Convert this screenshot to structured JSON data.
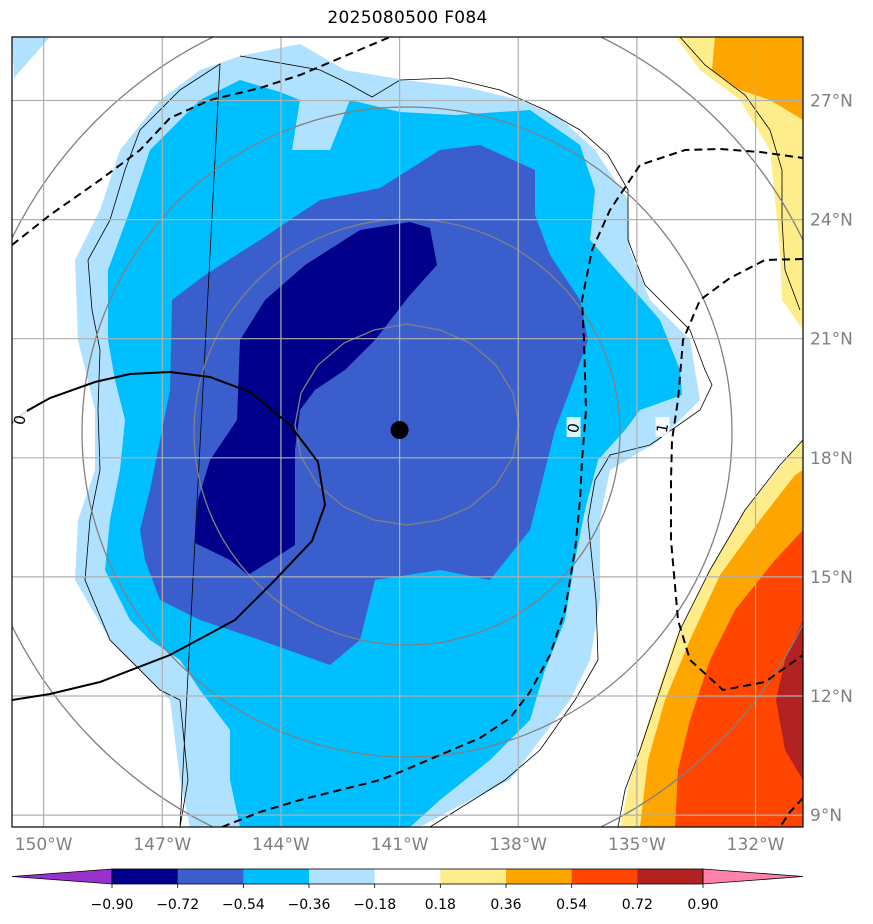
{
  "title": "2025080500 F084",
  "map": {
    "lon_range": [
      -150.8,
      -130.8
    ],
    "lat_range": [
      8.7,
      28.6
    ],
    "lon_ticks": [
      {
        "value": -150,
        "label": "150°W"
      },
      {
        "value": -147,
        "label": "147°W"
      },
      {
        "value": -144,
        "label": "144°W"
      },
      {
        "value": -141,
        "label": "141°W"
      },
      {
        "value": -138,
        "label": "138°W"
      },
      {
        "value": -135,
        "label": "135°W"
      },
      {
        "value": -132,
        "label": "132°W"
      }
    ],
    "lat_ticks": [
      {
        "value": 9,
        "label": "9°N"
      },
      {
        "value": 12,
        "label": "12°N"
      },
      {
        "value": 15,
        "label": "15°N"
      },
      {
        "value": 18,
        "label": "18°N"
      },
      {
        "value": 21,
        "label": "21°N"
      },
      {
        "value": 24,
        "label": "24°N"
      },
      {
        "value": 27,
        "label": "27°N"
      }
    ],
    "storm_center": {
      "lon": -141.0,
      "lat": 18.7
    },
    "contour_labels": [
      {
        "text": "0",
        "lon": -150.6,
        "lat": 18.95,
        "style": "solid"
      },
      {
        "text": "0",
        "lon": -136.6,
        "lat": 18.75,
        "style": "dashed"
      },
      {
        "text": "1",
        "lon": -134.35,
        "lat": 18.75,
        "style": "dashed"
      }
    ]
  },
  "colorbar": {
    "levels": [
      "−0.90",
      "−0.72",
      "−0.54",
      "−0.36",
      "−0.18",
      "0.18",
      "0.36",
      "0.54",
      "0.72",
      "0.90"
    ],
    "colors": [
      "#9932cc",
      "#00008b",
      "#3a5fcd",
      "#00bfff",
      "#b0e2ff",
      "#ffffff",
      "#ffec8b",
      "#ffa500",
      "#ff4500",
      "#b22222",
      "#ff82ab"
    ]
  }
}
